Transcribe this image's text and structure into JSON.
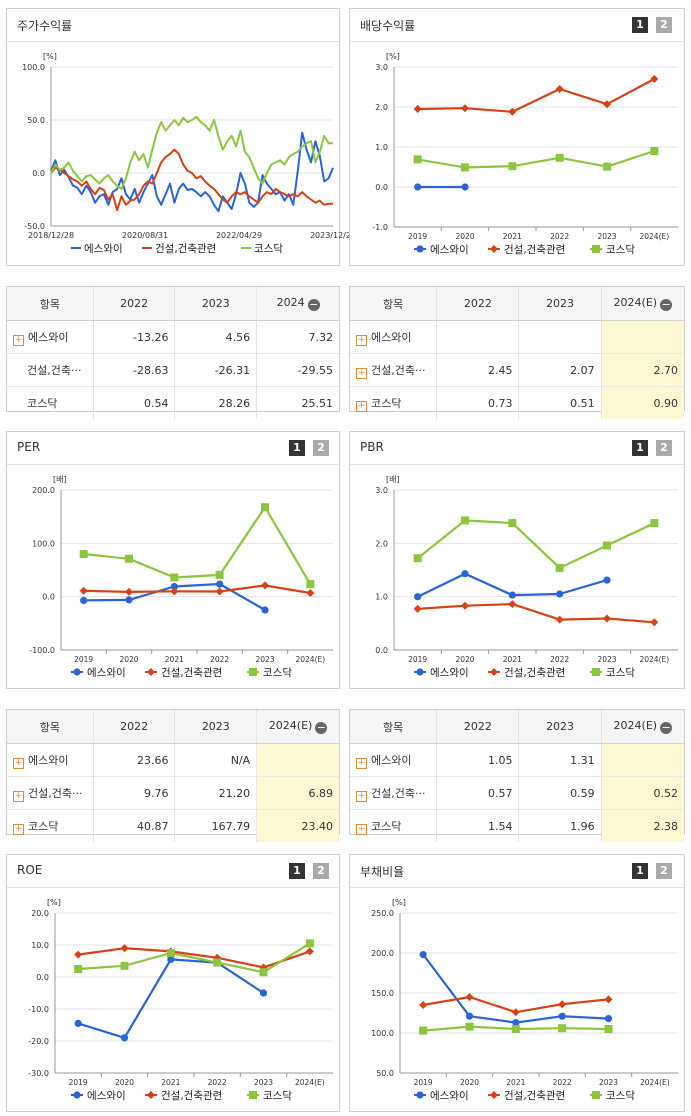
{
  "panels": {
    "stock": {
      "title": "주가수익률"
    },
    "dividend": {
      "title": "배당수익률",
      "pages": [
        "1",
        "2"
      ]
    },
    "per": {
      "title": "PER",
      "pages": [
        "1",
        "2"
      ]
    },
    "pbr": {
      "title": "PBR",
      "pages": [
        "1",
        "2"
      ]
    },
    "roe": {
      "title": "ROE",
      "pages": [
        "1",
        "2"
      ]
    },
    "debt": {
      "title": "부채비율",
      "pages": [
        "1",
        "2"
      ]
    }
  },
  "legend": [
    "에스와이",
    "건설,건축관련",
    "코스닥"
  ],
  "colors": {
    "s1": "#2a64d6",
    "s2": "#d64215",
    "s3": "#8cc63f"
  },
  "chart_data": [
    {
      "id": "stock",
      "type": "line",
      "unit": "[%]",
      "ylim": [
        -50,
        100
      ],
      "yticks": [
        "100.0",
        "50.0",
        "0.0",
        "-50.0"
      ],
      "xticks": [
        "2018/12/28",
        "2020/08/31",
        "2022/04/29",
        "2023/12/28"
      ],
      "series": [
        {
          "name": "에스와이",
          "values": [
            2,
            12,
            -2,
            3,
            -4,
            -12,
            -14,
            -20,
            -12,
            -18,
            -28,
            -22,
            -20,
            -30,
            -18,
            -15,
            -5,
            -20,
            -25,
            -15,
            -28,
            -18,
            -10,
            -2,
            -22,
            -30,
            -20,
            -10,
            -28,
            -15,
            -10,
            -16,
            -15,
            -18,
            -22,
            -18,
            -22,
            -30,
            -36,
            -22,
            -28,
            -34,
            -20,
            0,
            -10,
            -28,
            -32,
            -28,
            -2,
            -10,
            -15,
            -20,
            -18,
            -26,
            -20,
            -30,
            2,
            38,
            22,
            10,
            30,
            16,
            -8,
            -5,
            5
          ]
        },
        {
          "name": "건설,건축관련",
          "values": [
            0,
            5,
            3,
            0,
            -3,
            -6,
            -8,
            -12,
            -8,
            -15,
            -20,
            -14,
            -16,
            -25,
            -20,
            -35,
            -22,
            -30,
            -26,
            -25,
            -20,
            -12,
            -8,
            -10,
            0,
            10,
            15,
            18,
            22,
            18,
            8,
            2,
            0,
            -5,
            -3,
            -8,
            -12,
            -15,
            -20,
            -25,
            -28,
            -22,
            -18,
            -20,
            -18,
            -22,
            -25,
            -28,
            -22,
            -18,
            -20,
            -15,
            -18,
            -20,
            -22,
            -20,
            -22,
            -18,
            -22,
            -25,
            -28,
            -26,
            -30,
            -29,
            -29
          ]
        },
        {
          "name": "코스닥",
          "values": [
            0,
            8,
            3,
            5,
            10,
            2,
            -3,
            -8,
            -3,
            -2,
            -6,
            -10,
            -5,
            -2,
            -8,
            -12,
            -15,
            -5,
            10,
            20,
            12,
            18,
            5,
            22,
            38,
            48,
            40,
            45,
            50,
            45,
            52,
            48,
            50,
            53,
            48,
            45,
            40,
            50,
            35,
            22,
            30,
            35,
            25,
            40,
            20,
            15,
            5,
            -5,
            -10,
            0,
            8,
            10,
            12,
            8,
            15,
            18,
            20,
            25,
            28,
            30,
            10,
            20,
            35,
            28,
            28
          ]
        }
      ]
    },
    {
      "id": "dividend",
      "type": "line",
      "unit": "[%]",
      "ylim": [
        -1,
        3
      ],
      "yticks": [
        "3.0",
        "2.0",
        "1.0",
        "0.0",
        "-1.0"
      ],
      "xticks": [
        "2019",
        "2020",
        "2021",
        "2022",
        "2023",
        "2024(E)"
      ],
      "series": [
        {
          "name": "에스와이",
          "values": [
            0.0,
            0.0,
            null,
            null,
            null,
            null
          ]
        },
        {
          "name": "건설,건축관련",
          "values": [
            1.95,
            1.97,
            1.88,
            2.45,
            2.07,
            2.7
          ]
        },
        {
          "name": "코스닥",
          "values": [
            0.69,
            0.49,
            0.52,
            0.73,
            0.51,
            0.9
          ]
        }
      ]
    },
    {
      "id": "per",
      "type": "line",
      "unit": "[배]",
      "ylim": [
        -100,
        200
      ],
      "yticks": [
        "200.0",
        "100.0",
        "0.0",
        "-100.0"
      ],
      "xticks": [
        "2019",
        "2020",
        "2021",
        "2022",
        "2023",
        "2024(E)"
      ],
      "series": [
        {
          "name": "에스와이",
          "values": [
            -7,
            -6,
            19,
            23.66,
            -25,
            null
          ]
        },
        {
          "name": "건설,건축관련",
          "values": [
            11,
            9,
            10,
            9.76,
            21.2,
            6.89
          ]
        },
        {
          "name": "코스닥",
          "values": [
            80,
            71,
            36,
            40.87,
            167.79,
            23.4
          ]
        }
      ]
    },
    {
      "id": "pbr",
      "type": "line",
      "unit": "[배]",
      "ylim": [
        0,
        3
      ],
      "yticks": [
        "3.0",
        "2.0",
        "1.0",
        "0.0"
      ],
      "xticks": [
        "2019",
        "2020",
        "2021",
        "2022",
        "2023",
        "2024(E)"
      ],
      "series": [
        {
          "name": "에스와이",
          "values": [
            1.0,
            1.43,
            1.03,
            1.05,
            1.31,
            null
          ]
        },
        {
          "name": "건설,건축관련",
          "values": [
            0.77,
            0.83,
            0.86,
            0.57,
            0.59,
            0.52
          ]
        },
        {
          "name": "코스닥",
          "values": [
            1.72,
            2.43,
            2.38,
            1.54,
            1.96,
            2.38
          ]
        }
      ]
    },
    {
      "id": "roe",
      "type": "line",
      "unit": "[%]",
      "ylim": [
        -30,
        20
      ],
      "yticks": [
        "20.0",
        "10.0",
        "0.0",
        "-10.0",
        "-20.0",
        "-30.0"
      ],
      "xticks": [
        "2019",
        "2020",
        "2021",
        "2022",
        "2023",
        "2024(E)"
      ],
      "series": [
        {
          "name": "에스와이",
          "values": [
            -14.5,
            -19,
            5.5,
            4.5,
            -5,
            null
          ]
        },
        {
          "name": "건설,건축관련",
          "values": [
            7,
            9,
            8,
            6,
            3,
            8
          ]
        },
        {
          "name": "코스닥",
          "values": [
            2.5,
            3.5,
            7.5,
            4.5,
            1.5,
            10.5
          ]
        }
      ]
    },
    {
      "id": "debt",
      "type": "line",
      "unit": "[%]",
      "ylim": [
        50,
        250
      ],
      "yticks": [
        "250.0",
        "200.0",
        "150.0",
        "100.0",
        "50.0"
      ],
      "xticks": [
        "2019",
        "2020",
        "2021",
        "2022",
        "2023",
        "2024(E)"
      ],
      "series": [
        {
          "name": "에스와이",
          "values": [
            198,
            121,
            113,
            121,
            118,
            null
          ]
        },
        {
          "name": "건설,건축관련",
          "values": [
            135,
            145,
            126,
            136,
            142,
            null
          ]
        },
        {
          "name": "코스닥",
          "values": [
            103,
            108,
            105,
            106,
            105,
            null
          ]
        }
      ]
    }
  ],
  "tables": {
    "stock": {
      "header": [
        "항목",
        "2022",
        "2023",
        "2024"
      ],
      "rows": [
        [
          "에스와이",
          "-13.26",
          "4.56",
          "7.32"
        ],
        [
          "건설,건축···",
          "-28.63",
          "-26.31",
          "-29.55"
        ],
        [
          "코스닥",
          "0.54",
          "28.26",
          "25.51"
        ]
      ]
    },
    "dividend": {
      "header": [
        "항목",
        "2022",
        "2023",
        "2024(E)"
      ],
      "rows": [
        [
          "에스와이",
          "",
          "",
          ""
        ],
        [
          "건설,건축···",
          "2.45",
          "2.07",
          "2.70"
        ],
        [
          "코스닥",
          "0.73",
          "0.51",
          "0.90"
        ]
      ]
    },
    "per": {
      "header": [
        "항목",
        "2022",
        "2023",
        "2024(E)"
      ],
      "rows": [
        [
          "에스와이",
          "23.66",
          "N/A",
          ""
        ],
        [
          "건설,건축···",
          "9.76",
          "21.20",
          "6.89"
        ],
        [
          "코스닥",
          "40.87",
          "167.79",
          "23.40"
        ]
      ]
    },
    "pbr": {
      "header": [
        "항목",
        "2022",
        "2023",
        "2024(E)"
      ],
      "rows": [
        [
          "에스와이",
          "1.05",
          "1.31",
          ""
        ],
        [
          "건설,건축···",
          "0.57",
          "0.59",
          "0.52"
        ],
        [
          "코스닥",
          "1.54",
          "1.96",
          "2.38"
        ]
      ]
    }
  }
}
